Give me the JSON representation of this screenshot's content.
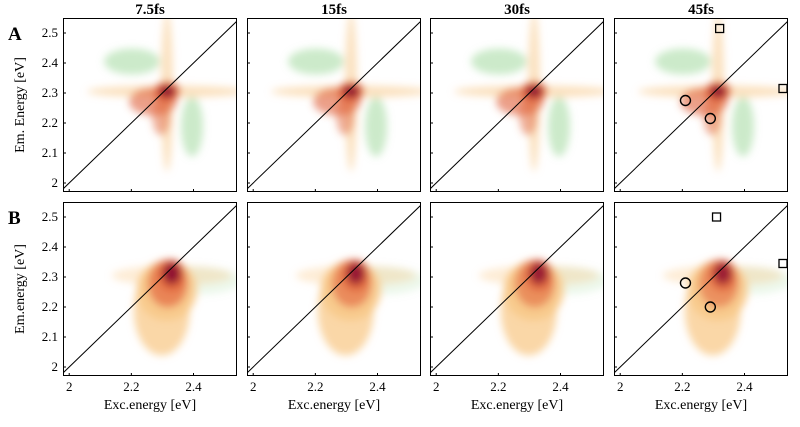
{
  "chart_data": {
    "type": "heatmap",
    "description_units": "energies in eV",
    "columns": [
      "7.5fs",
      "15fs",
      "30fs",
      "45fs"
    ],
    "rows": [
      {
        "letter": "A",
        "ylabel": "Em. Energy [eV]",
        "xlabel": "",
        "xlim": [
          1.98,
          2.54
        ],
        "ylim": [
          1.97,
          2.55
        ],
        "yticks": [
          2,
          2.1,
          2.2,
          2.3,
          2.4,
          2.5
        ],
        "yticklabels": [
          "2",
          "2.1",
          "2.2",
          "2.3",
          "2.4",
          "2.5"
        ],
        "xticks": [],
        "xticklabels": [],
        "peak": [
          2.315,
          2.305
        ],
        "colors": {
          "positive_high": "#8b0a33",
          "positive_mid": "#e0613a",
          "positive_low": "#f8c98a",
          "negative": "#8fd08a"
        },
        "diagonal_line": true,
        "markers_panel": "45fs",
        "circles": [
          [
            2.21,
            2.275
          ],
          [
            2.29,
            2.215
          ]
        ],
        "squares": [
          [
            2.32,
            2.515
          ],
          [
            2.535,
            2.315
          ]
        ]
      },
      {
        "letter": "B",
        "ylabel": "Em.energy [eV]",
        "xlabel": "Exc.energy [eV]",
        "xlim": [
          1.98,
          2.54
        ],
        "ylim": [
          1.97,
          2.55
        ],
        "yticks": [
          2,
          2.1,
          2.2,
          2.3,
          2.4,
          2.5
        ],
        "yticklabels": [
          "2",
          "2.1",
          "2.2",
          "2.3",
          "2.4",
          "2.5"
        ],
        "xticks": [
          2,
          2.2,
          2.4
        ],
        "xticklabels": [
          "2",
          "2.2",
          "2.4"
        ],
        "peak": [
          2.33,
          2.305
        ],
        "colors": {
          "positive_high": "#8b0a33",
          "positive_mid": "#e0613a",
          "positive_low": "#f8c98a",
          "negative": "#8fd08a"
        },
        "diagonal_line": true,
        "markers_panel": "45fs",
        "circles": [
          [
            2.21,
            2.28
          ],
          [
            2.29,
            2.2
          ]
        ],
        "squares": [
          [
            2.31,
            2.5
          ],
          [
            2.535,
            2.345
          ]
        ]
      }
    ]
  }
}
